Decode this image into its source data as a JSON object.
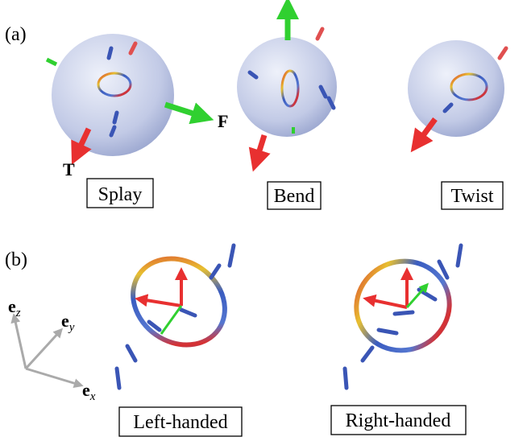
{
  "panel_a": {
    "label": "(a)",
    "modes": [
      "Splay",
      "Bend",
      "Twist"
    ],
    "arrow_labels": {
      "torque": "T",
      "force": "F"
    }
  },
  "panel_b": {
    "label": "(b)",
    "handedness": [
      "Left-handed",
      "Right-handed"
    ],
    "axes": [
      {
        "base": "e",
        "sub": "z"
      },
      {
        "base": "e",
        "sub": "y"
      },
      {
        "base": "e",
        "sub": "x"
      }
    ]
  }
}
